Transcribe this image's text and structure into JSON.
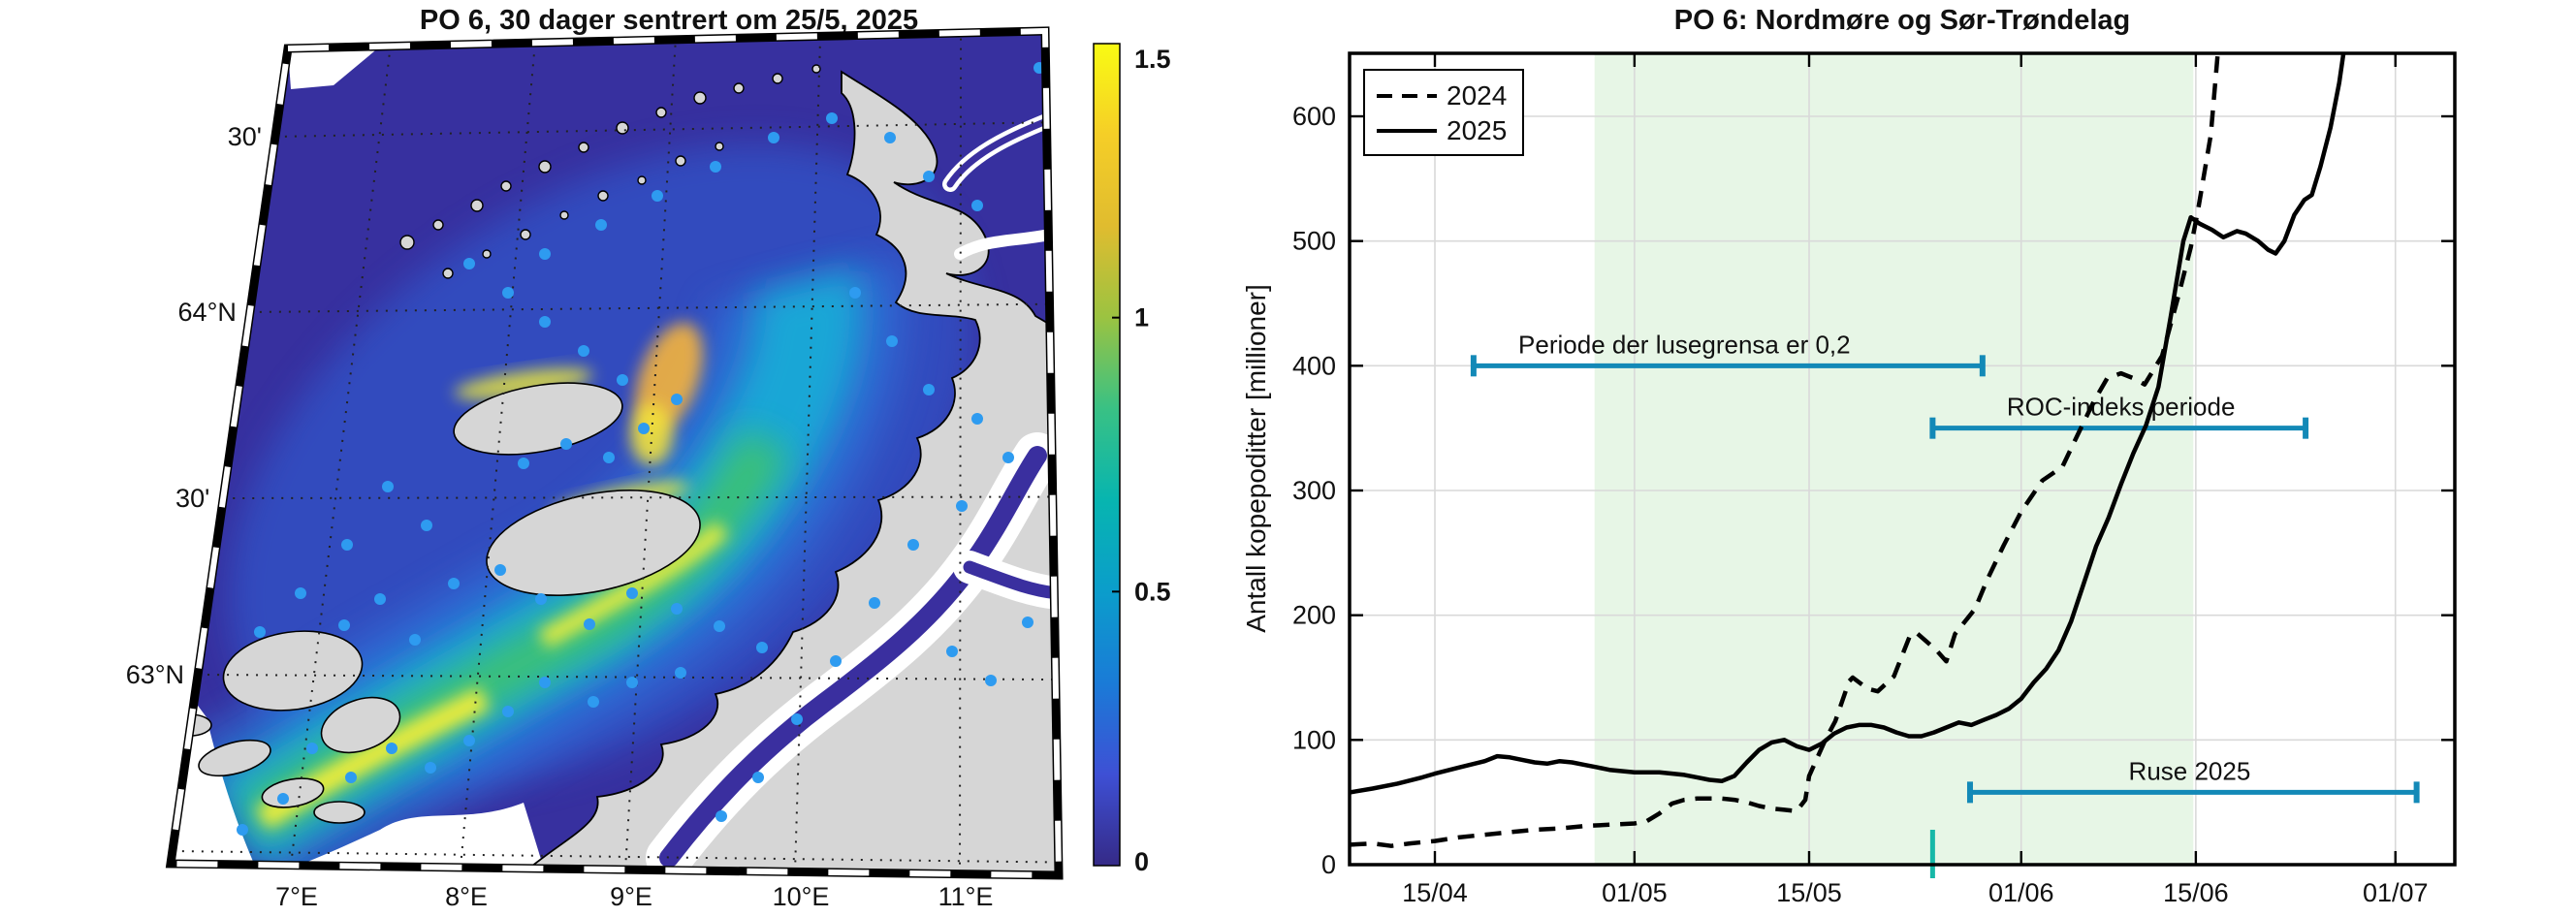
{
  "map": {
    "title": "PO 6, 30 dager sentrert om 25/5, 2025",
    "x_tick_labels": [
      "7°E",
      "8°E",
      "9°E",
      "10°E",
      "11°E"
    ],
    "y_tick_labels": [
      "30'",
      "64°N",
      "30'",
      "63°N"
    ],
    "colorbar": {
      "tick_labels": [
        "0",
        "0.5",
        "1",
        "1.5"
      ],
      "min": 0,
      "max": 1.5,
      "colors": [
        "#352a87",
        "#3e50d5",
        "#1a7bd7",
        "#0b9dcb",
        "#07b5b0",
        "#39c184",
        "#9bc341",
        "#e0bc2f",
        "#f5ce27",
        "#f9fb13"
      ]
    },
    "farm_marker_color": "#2e9bf0",
    "farm_markers": [
      [
        355,
        645
      ],
      [
        392,
        618
      ],
      [
        428,
        660
      ],
      [
        468,
        602
      ],
      [
        516,
        588
      ],
      [
        558,
        618
      ],
      [
        608,
        644
      ],
      [
        652,
        612
      ],
      [
        698,
        628
      ],
      [
        742,
        646
      ],
      [
        786,
        668
      ],
      [
        702,
        694
      ],
      [
        652,
        704
      ],
      [
        612,
        724
      ],
      [
        562,
        704
      ],
      [
        524,
        734
      ],
      [
        484,
        764
      ],
      [
        444,
        792
      ],
      [
        404,
        772
      ],
      [
        362,
        802
      ],
      [
        322,
        772
      ],
      [
        292,
        824
      ],
      [
        250,
        856
      ],
      [
        540,
        478
      ],
      [
        584,
        458
      ],
      [
        628,
        472
      ],
      [
        664,
        442
      ],
      [
        698,
        412
      ],
      [
        642,
        392
      ],
      [
        602,
        362
      ],
      [
        562,
        332
      ],
      [
        524,
        302
      ],
      [
        484,
        272
      ],
      [
        562,
        262
      ],
      [
        620,
        232
      ],
      [
        678,
        202
      ],
      [
        738,
        172
      ],
      [
        798,
        142
      ],
      [
        858,
        122
      ],
      [
        918,
        142
      ],
      [
        958,
        182
      ],
      [
        1008,
        212
      ],
      [
        1072,
        70
      ],
      [
        882,
        302
      ],
      [
        920,
        352
      ],
      [
        958,
        402
      ],
      [
        1008,
        432
      ],
      [
        1040,
        472
      ],
      [
        992,
        522
      ],
      [
        942,
        562
      ],
      [
        902,
        622
      ],
      [
        862,
        682
      ],
      [
        822,
        742
      ],
      [
        782,
        802
      ],
      [
        744,
        842
      ],
      [
        982,
        672
      ],
      [
        1022,
        702
      ],
      [
        1060,
        642
      ],
      [
        440,
        542
      ],
      [
        400,
        502
      ],
      [
        358,
        562
      ],
      [
        310,
        612
      ],
      [
        268,
        652
      ]
    ]
  },
  "chart": {
    "title": "PO 6: Nordmøre og Sør-Trøndelag",
    "ylabel": "Antall kopepoditter [millioner]",
    "legend": [
      "2024",
      "2025"
    ],
    "band_from": "28/04",
    "band_to": "15/06",
    "band_color": "#e7f6e6"
  },
  "chart_data": {
    "type": "line",
    "title": "PO 6: Nordmøre og Sør-Trøndelag",
    "xlabel": "",
    "ylabel": "Antall kopepoditter [millioner]",
    "ylim": [
      0,
      650
    ],
    "xlim_days": [
      7.2,
      95.7
    ],
    "day_reference": "days since 01/04",
    "x_tick_days": [
      14,
      30,
      44,
      61,
      75,
      91
    ],
    "x_tick_labels": [
      "15/04",
      "01/05",
      "15/05",
      "01/06",
      "15/06",
      "01/07"
    ],
    "y_ticks": [
      0,
      100,
      200,
      300,
      400,
      500,
      600
    ],
    "grid": true,
    "legend_position": "top-left",
    "shaded_region_days": [
      26.8,
      74.8
    ],
    "shaded_region_dates": [
      "28/04",
      "15/06"
    ],
    "series": [
      {
        "name": "2024",
        "style": "dashed",
        "color": "#000000",
        "points": [
          [
            7.2,
            16
          ],
          [
            9,
            17
          ],
          [
            10.5,
            15
          ],
          [
            12,
            17
          ],
          [
            14,
            19
          ],
          [
            16,
            22
          ],
          [
            18,
            24
          ],
          [
            20,
            26
          ],
          [
            22,
            28
          ],
          [
            24,
            29
          ],
          [
            26,
            31
          ],
          [
            28,
            32
          ],
          [
            30,
            33
          ],
          [
            31,
            35
          ],
          [
            32,
            41
          ],
          [
            33,
            49
          ],
          [
            34,
            52
          ],
          [
            35,
            53
          ],
          [
            37,
            53
          ],
          [
            38,
            52
          ],
          [
            39,
            50
          ],
          [
            40,
            47
          ],
          [
            41,
            45
          ],
          [
            42,
            44
          ],
          [
            43,
            43
          ],
          [
            43.7,
            52
          ],
          [
            44,
            71
          ],
          [
            45.3,
            100
          ],
          [
            46.1,
            115
          ],
          [
            47.2,
            147
          ],
          [
            47.5,
            150
          ],
          [
            48.7,
            141
          ],
          [
            49.5,
            139
          ],
          [
            50.8,
            151
          ],
          [
            52.1,
            184
          ],
          [
            52.6,
            186
          ],
          [
            54.2,
            172
          ],
          [
            55,
            163
          ],
          [
            55.7,
            185
          ],
          [
            57.3,
            205
          ],
          [
            58.3,
            229
          ],
          [
            59.6,
            256
          ],
          [
            61,
            283
          ],
          [
            62.7,
            308
          ],
          [
            64.3,
            319
          ],
          [
            65.5,
            344
          ],
          [
            66.8,
            371
          ],
          [
            67.9,
            390
          ],
          [
            69,
            394
          ],
          [
            70,
            390
          ],
          [
            70.9,
            385
          ],
          [
            72.3,
            408
          ],
          [
            73.6,
            456
          ],
          [
            74.6,
            495
          ],
          [
            75.2,
            526
          ],
          [
            76.2,
            585
          ],
          [
            76.8,
            655
          ]
        ]
      },
      {
        "name": "2025",
        "style": "solid",
        "color": "#000000",
        "points": [
          [
            7.2,
            58
          ],
          [
            9,
            61
          ],
          [
            11,
            65
          ],
          [
            13,
            70
          ],
          [
            14,
            73
          ],
          [
            16,
            78
          ],
          [
            18,
            83
          ],
          [
            19,
            87
          ],
          [
            20,
            86
          ],
          [
            21,
            84
          ],
          [
            22,
            82
          ],
          [
            23,
            81
          ],
          [
            24,
            83
          ],
          [
            25,
            82
          ],
          [
            26,
            80
          ],
          [
            27,
            78
          ],
          [
            28,
            76
          ],
          [
            29,
            75
          ],
          [
            30,
            74
          ],
          [
            32,
            74
          ],
          [
            34,
            72
          ],
          [
            35,
            70
          ],
          [
            36,
            68
          ],
          [
            37,
            67
          ],
          [
            38,
            71
          ],
          [
            39,
            82
          ],
          [
            40,
            92
          ],
          [
            41,
            98
          ],
          [
            42,
            100
          ],
          [
            43,
            95
          ],
          [
            44,
            92
          ],
          [
            45,
            97
          ],
          [
            46,
            105
          ],
          [
            47,
            110
          ],
          [
            48,
            112
          ],
          [
            49,
            112
          ],
          [
            50,
            110
          ],
          [
            51,
            106
          ],
          [
            52,
            103
          ],
          [
            53,
            103
          ],
          [
            54,
            106
          ],
          [
            55,
            110
          ],
          [
            56,
            114
          ],
          [
            57,
            112
          ],
          [
            58,
            116
          ],
          [
            59,
            120
          ],
          [
            60,
            125
          ],
          [
            61,
            133
          ],
          [
            62,
            146
          ],
          [
            63,
            157
          ],
          [
            64,
            172
          ],
          [
            65,
            195
          ],
          [
            66,
            225
          ],
          [
            67,
            255
          ],
          [
            68,
            278
          ],
          [
            69,
            305
          ],
          [
            70,
            330
          ],
          [
            71,
            352
          ],
          [
            72,
            383
          ],
          [
            73,
            440
          ],
          [
            74,
            500
          ],
          [
            74.6,
            519
          ],
          [
            75.3,
            514
          ],
          [
            76.3,
            509
          ],
          [
            77.2,
            503
          ],
          [
            78.3,
            508
          ],
          [
            79,
            506
          ],
          [
            80,
            500
          ],
          [
            80.8,
            493
          ],
          [
            81.4,
            490
          ],
          [
            82.1,
            500
          ],
          [
            82.9,
            521
          ],
          [
            83.7,
            533
          ],
          [
            84.3,
            537
          ],
          [
            85,
            560
          ],
          [
            85.8,
            591
          ],
          [
            86.5,
            627
          ],
          [
            86.9,
            655
          ]
        ]
      }
    ],
    "annotations": [
      {
        "text": "Periode der lusegrensa er 0,2",
        "y": 400,
        "day_from": 17.1,
        "day_to": 57.9,
        "text_day": 34,
        "color": "#1389b7"
      },
      {
        "text": "ROC-indeks periode",
        "y": 350,
        "day_from": 53.9,
        "day_to": 83.8,
        "text_day": 69,
        "color": "#1389b7"
      },
      {
        "text": "Ruse 2025",
        "y": 58,
        "day_from": 56.9,
        "day_to": 92.7,
        "text_day": 74.5,
        "color": "#1389b7"
      }
    ],
    "bottom_marker": {
      "day": 53.9,
      "date": "25/05",
      "color": "#17b8a8"
    }
  }
}
